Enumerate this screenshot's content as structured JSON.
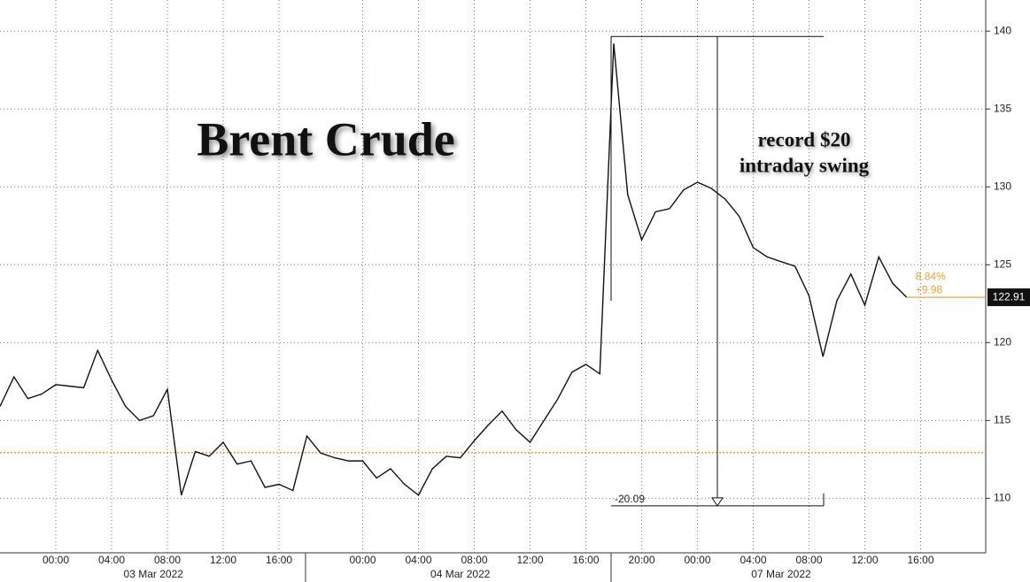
{
  "chart_data": {
    "type": "line",
    "title": "Brent Crude",
    "annotations": [
      "record $20",
      "intraday swing"
    ],
    "swing_label": "-20.09",
    "change_labels": [
      "8.84%",
      "+9.98"
    ],
    "categories": [
      null,
      null,
      null,
      null,
      "00:00",
      null,
      null,
      null,
      "04:00",
      null,
      null,
      null,
      "08:00",
      null,
      null,
      null,
      "12:00",
      null,
      null,
      null,
      "16:00",
      null,
      null,
      null,
      null,
      null,
      "00:00",
      null,
      null,
      null,
      "04:00",
      null,
      null,
      null,
      "08:00",
      null,
      null,
      null,
      "12:00",
      null,
      null,
      null,
      "16:00",
      null,
      null,
      null,
      "20:00",
      null,
      null,
      null,
      "00:00",
      null,
      null,
      null,
      "04:00",
      null,
      null,
      null,
      "08:00",
      null,
      null,
      null,
      "12:00",
      null,
      null,
      null,
      "16:00",
      null,
      null,
      null,
      null
    ],
    "dates": [
      null,
      null,
      null,
      null,
      null,
      null,
      null,
      null,
      null,
      null,
      null,
      "03 Mar 2022",
      null,
      null,
      null,
      null,
      null,
      null,
      null,
      null,
      null,
      null,
      null,
      null,
      null,
      null,
      null,
      null,
      null,
      null,
      null,
      null,
      null,
      "04 Mar 2022",
      null,
      null,
      null,
      null,
      null,
      null,
      null,
      null,
      null,
      null,
      null,
      null,
      null,
      null,
      null,
      null,
      null,
      null,
      null,
      null,
      null,
      null,
      "07 Mar 2022",
      null,
      null,
      null,
      null,
      null,
      null,
      null,
      null,
      null,
      null,
      null,
      null,
      null,
      null
    ],
    "series": [
      {
        "name": "Brent Crude",
        "color": "#111111",
        "values": [
          115.9,
          117.8,
          116.4,
          116.7,
          117.3,
          117.2,
          117.1,
          119.5,
          117.6,
          115.9,
          115.0,
          115.3,
          117.0,
          110.2,
          113.0,
          112.7,
          113.6,
          112.2,
          112.4,
          110.7,
          110.9,
          110.5,
          114.0,
          112.9,
          112.6,
          112.4,
          112.4,
          111.3,
          111.9,
          110.9,
          110.2,
          111.9,
          112.7,
          112.6,
          113.7,
          114.7,
          115.6,
          114.4,
          113.6,
          115.0,
          116.4,
          118.1,
          118.6,
          118.0,
          139.2,
          129.5,
          126.6,
          128.4,
          128.6,
          129.8,
          130.3,
          129.9,
          129.2,
          128.1,
          126.1,
          125.5,
          125.2,
          124.9,
          123.0,
          119.1,
          122.7,
          124.4,
          122.4,
          125.5,
          123.8,
          122.91,
          null,
          null,
          null,
          null,
          null
        ]
      }
    ],
    "reference_line": 112.93,
    "reference_color": "#e8a33d",
    "ylim": [
      106.5,
      142
    ],
    "yticks": [
      110,
      115,
      120,
      125,
      130,
      135,
      140
    ],
    "grid": true
  }
}
